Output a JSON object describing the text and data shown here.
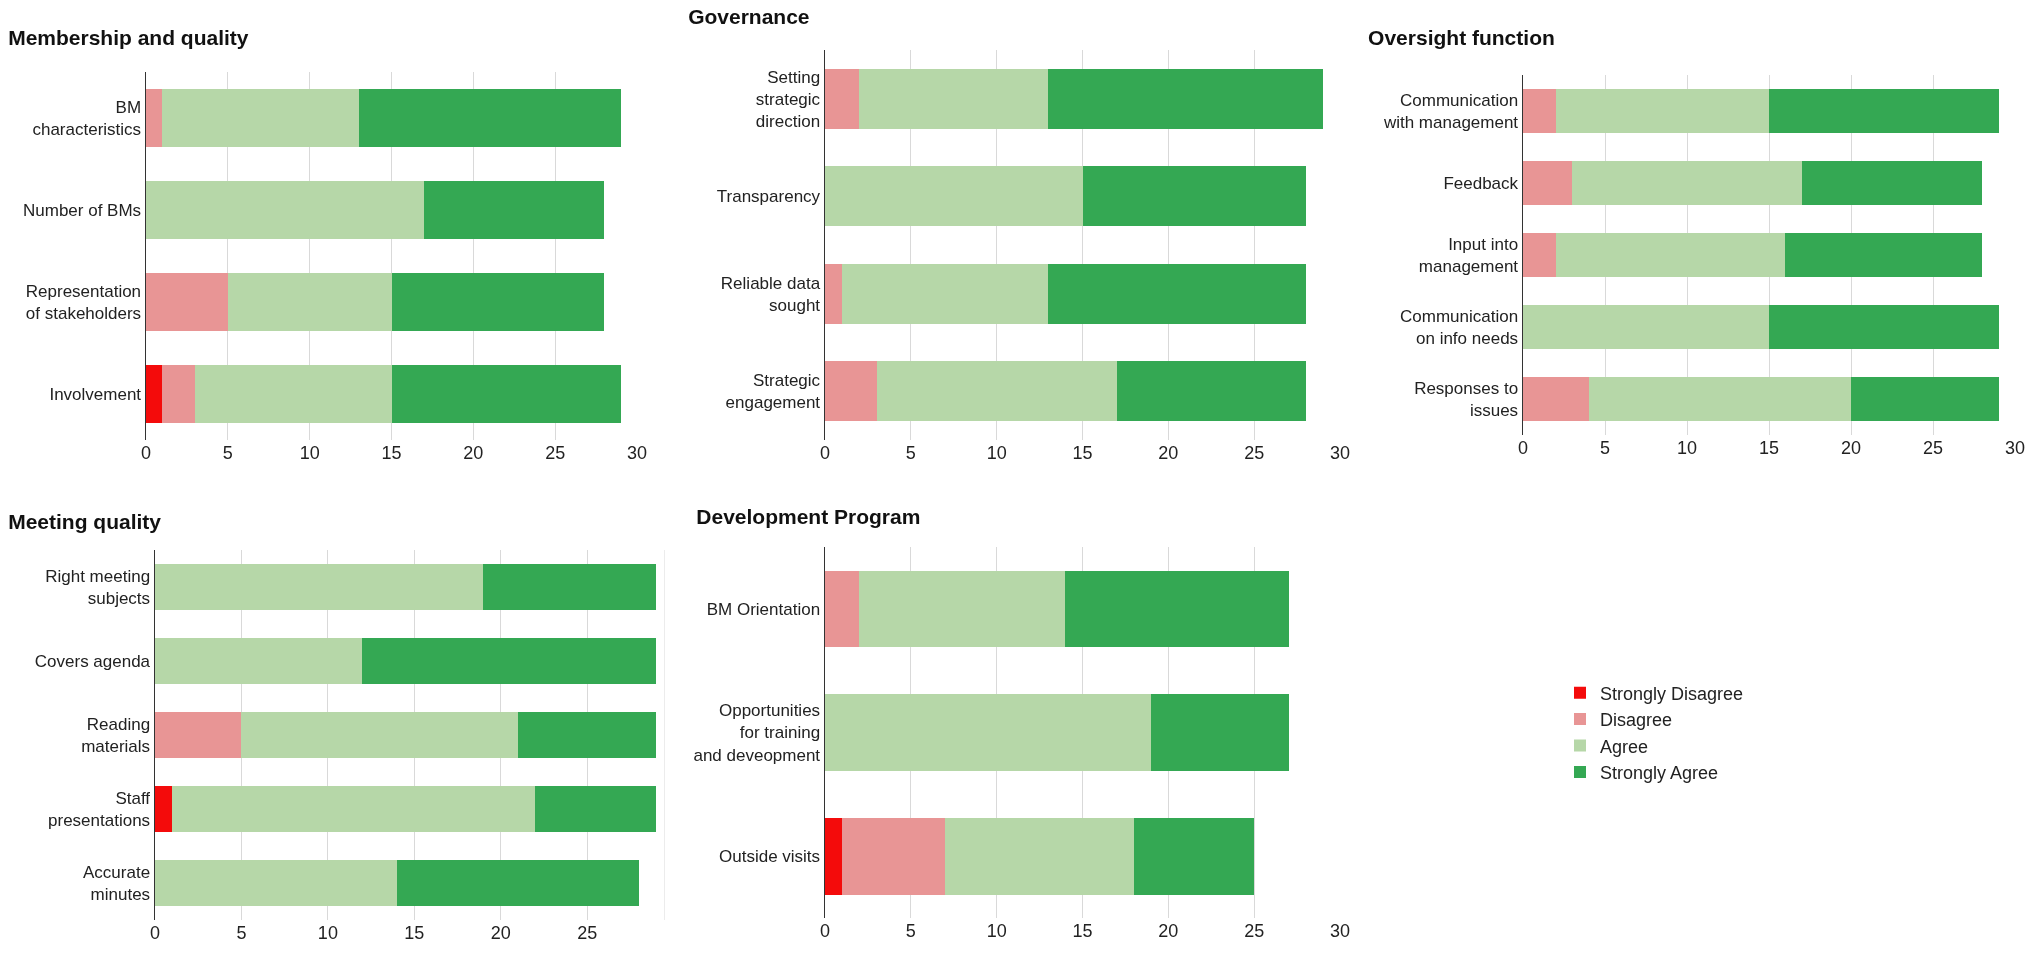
{
  "chart_data": [
    {
      "type": "bar",
      "orientation": "horizontal",
      "stacked": true,
      "title": "Membership and quality",
      "categories": [
        "BM characteristics",
        "Number of BMs",
        "Representation of stakeholders",
        "Involvement"
      ],
      "series": [
        {
          "color": "#f40b0b",
          "values": [
            0,
            0,
            0,
            1
          ]
        },
        {
          "color": "#e89595",
          "values": [
            1,
            0,
            5,
            2
          ]
        },
        {
          "color": "#b6d7a8",
          "values": [
            12,
            17,
            10,
            12
          ]
        },
        {
          "color": "#34a853",
          "values": [
            16,
            11,
            13,
            14
          ]
        }
      ],
      "xlim": [
        0,
        30
      ],
      "xticks": [
        0,
        5,
        10,
        15,
        20,
        25,
        30
      ],
      "grid": "x",
      "legend": false
    },
    {
      "type": "bar",
      "orientation": "horizontal",
      "stacked": true,
      "title": "Governance",
      "categories": [
        "Setting strategic direction",
        "Transparency",
        "Reliable data sought",
        "Strategic engagement"
      ],
      "series": [
        {
          "color": "#f40b0b",
          "values": [
            0,
            0,
            0,
            0
          ]
        },
        {
          "color": "#e89595",
          "values": [
            2,
            0,
            1,
            3
          ]
        },
        {
          "color": "#b6d7a8",
          "values": [
            11,
            15,
            12,
            14
          ]
        },
        {
          "color": "#34a853",
          "values": [
            16,
            13,
            15,
            11
          ]
        }
      ],
      "xlim": [
        0,
        30
      ],
      "xticks": [
        0,
        5,
        10,
        15,
        20,
        25,
        30
      ],
      "grid": "x",
      "legend": false
    },
    {
      "type": "bar",
      "orientation": "horizontal",
      "stacked": true,
      "title": "Oversight function",
      "categories": [
        "Communication with management",
        "Feedback",
        "Input into management",
        "Communication on info needs",
        "Responses to issues"
      ],
      "series": [
        {
          "color": "#f40b0b",
          "values": [
            0,
            0,
            0,
            0,
            0
          ]
        },
        {
          "color": "#e89595",
          "values": [
            2,
            3,
            2,
            0,
            4
          ]
        },
        {
          "color": "#b6d7a8",
          "values": [
            13,
            14,
            14,
            15,
            16
          ]
        },
        {
          "color": "#34a853",
          "values": [
            14,
            11,
            12,
            14,
            9
          ]
        }
      ],
      "xlim": [
        0,
        30
      ],
      "xticks": [
        0,
        5,
        10,
        15,
        20,
        25,
        30
      ],
      "grid": "x",
      "legend": false
    },
    {
      "type": "bar",
      "orientation": "horizontal",
      "stacked": true,
      "title": "Meeting quality",
      "categories": [
        "Right meeting subjects",
        "Covers agenda",
        "Reading materials",
        "Staff presentations",
        "Accurate minutes"
      ],
      "series": [
        {
          "color": "#f40b0b",
          "values": [
            0,
            0,
            0,
            1,
            0
          ]
        },
        {
          "color": "#e89595",
          "values": [
            0,
            0,
            5,
            0,
            0
          ]
        },
        {
          "color": "#b6d7a8",
          "values": [
            19,
            12,
            16,
            21,
            14
          ]
        },
        {
          "color": "#34a853",
          "values": [
            10,
            17,
            8,
            7,
            14
          ]
        }
      ],
      "xlim": [
        0,
        29.5
      ],
      "xticks": [
        0,
        5,
        10,
        15,
        20,
        25
      ],
      "grid": "x",
      "legend": false
    },
    {
      "type": "bar",
      "orientation": "horizontal",
      "stacked": true,
      "title": "Development Program",
      "categories": [
        "BM Orientation",
        "Opportunities for training and deveopment",
        "Outside visits"
      ],
      "series": [
        {
          "name": "Strongly Disagree",
          "color": "#f40b0b",
          "values": [
            0,
            0,
            1
          ]
        },
        {
          "name": "Disagree",
          "color": "#e89595",
          "values": [
            2,
            0,
            6
          ]
        },
        {
          "name": "Agree",
          "color": "#b6d7a8",
          "values": [
            12,
            19,
            11
          ]
        },
        {
          "name": "Strongly Agree",
          "color": "#34a853",
          "values": [
            13,
            8,
            7
          ]
        }
      ],
      "xlim": [
        0,
        30
      ],
      "xticks": [
        0,
        5,
        10,
        15,
        20,
        25,
        30
      ],
      "grid": "x",
      "legend": "right"
    }
  ]
}
